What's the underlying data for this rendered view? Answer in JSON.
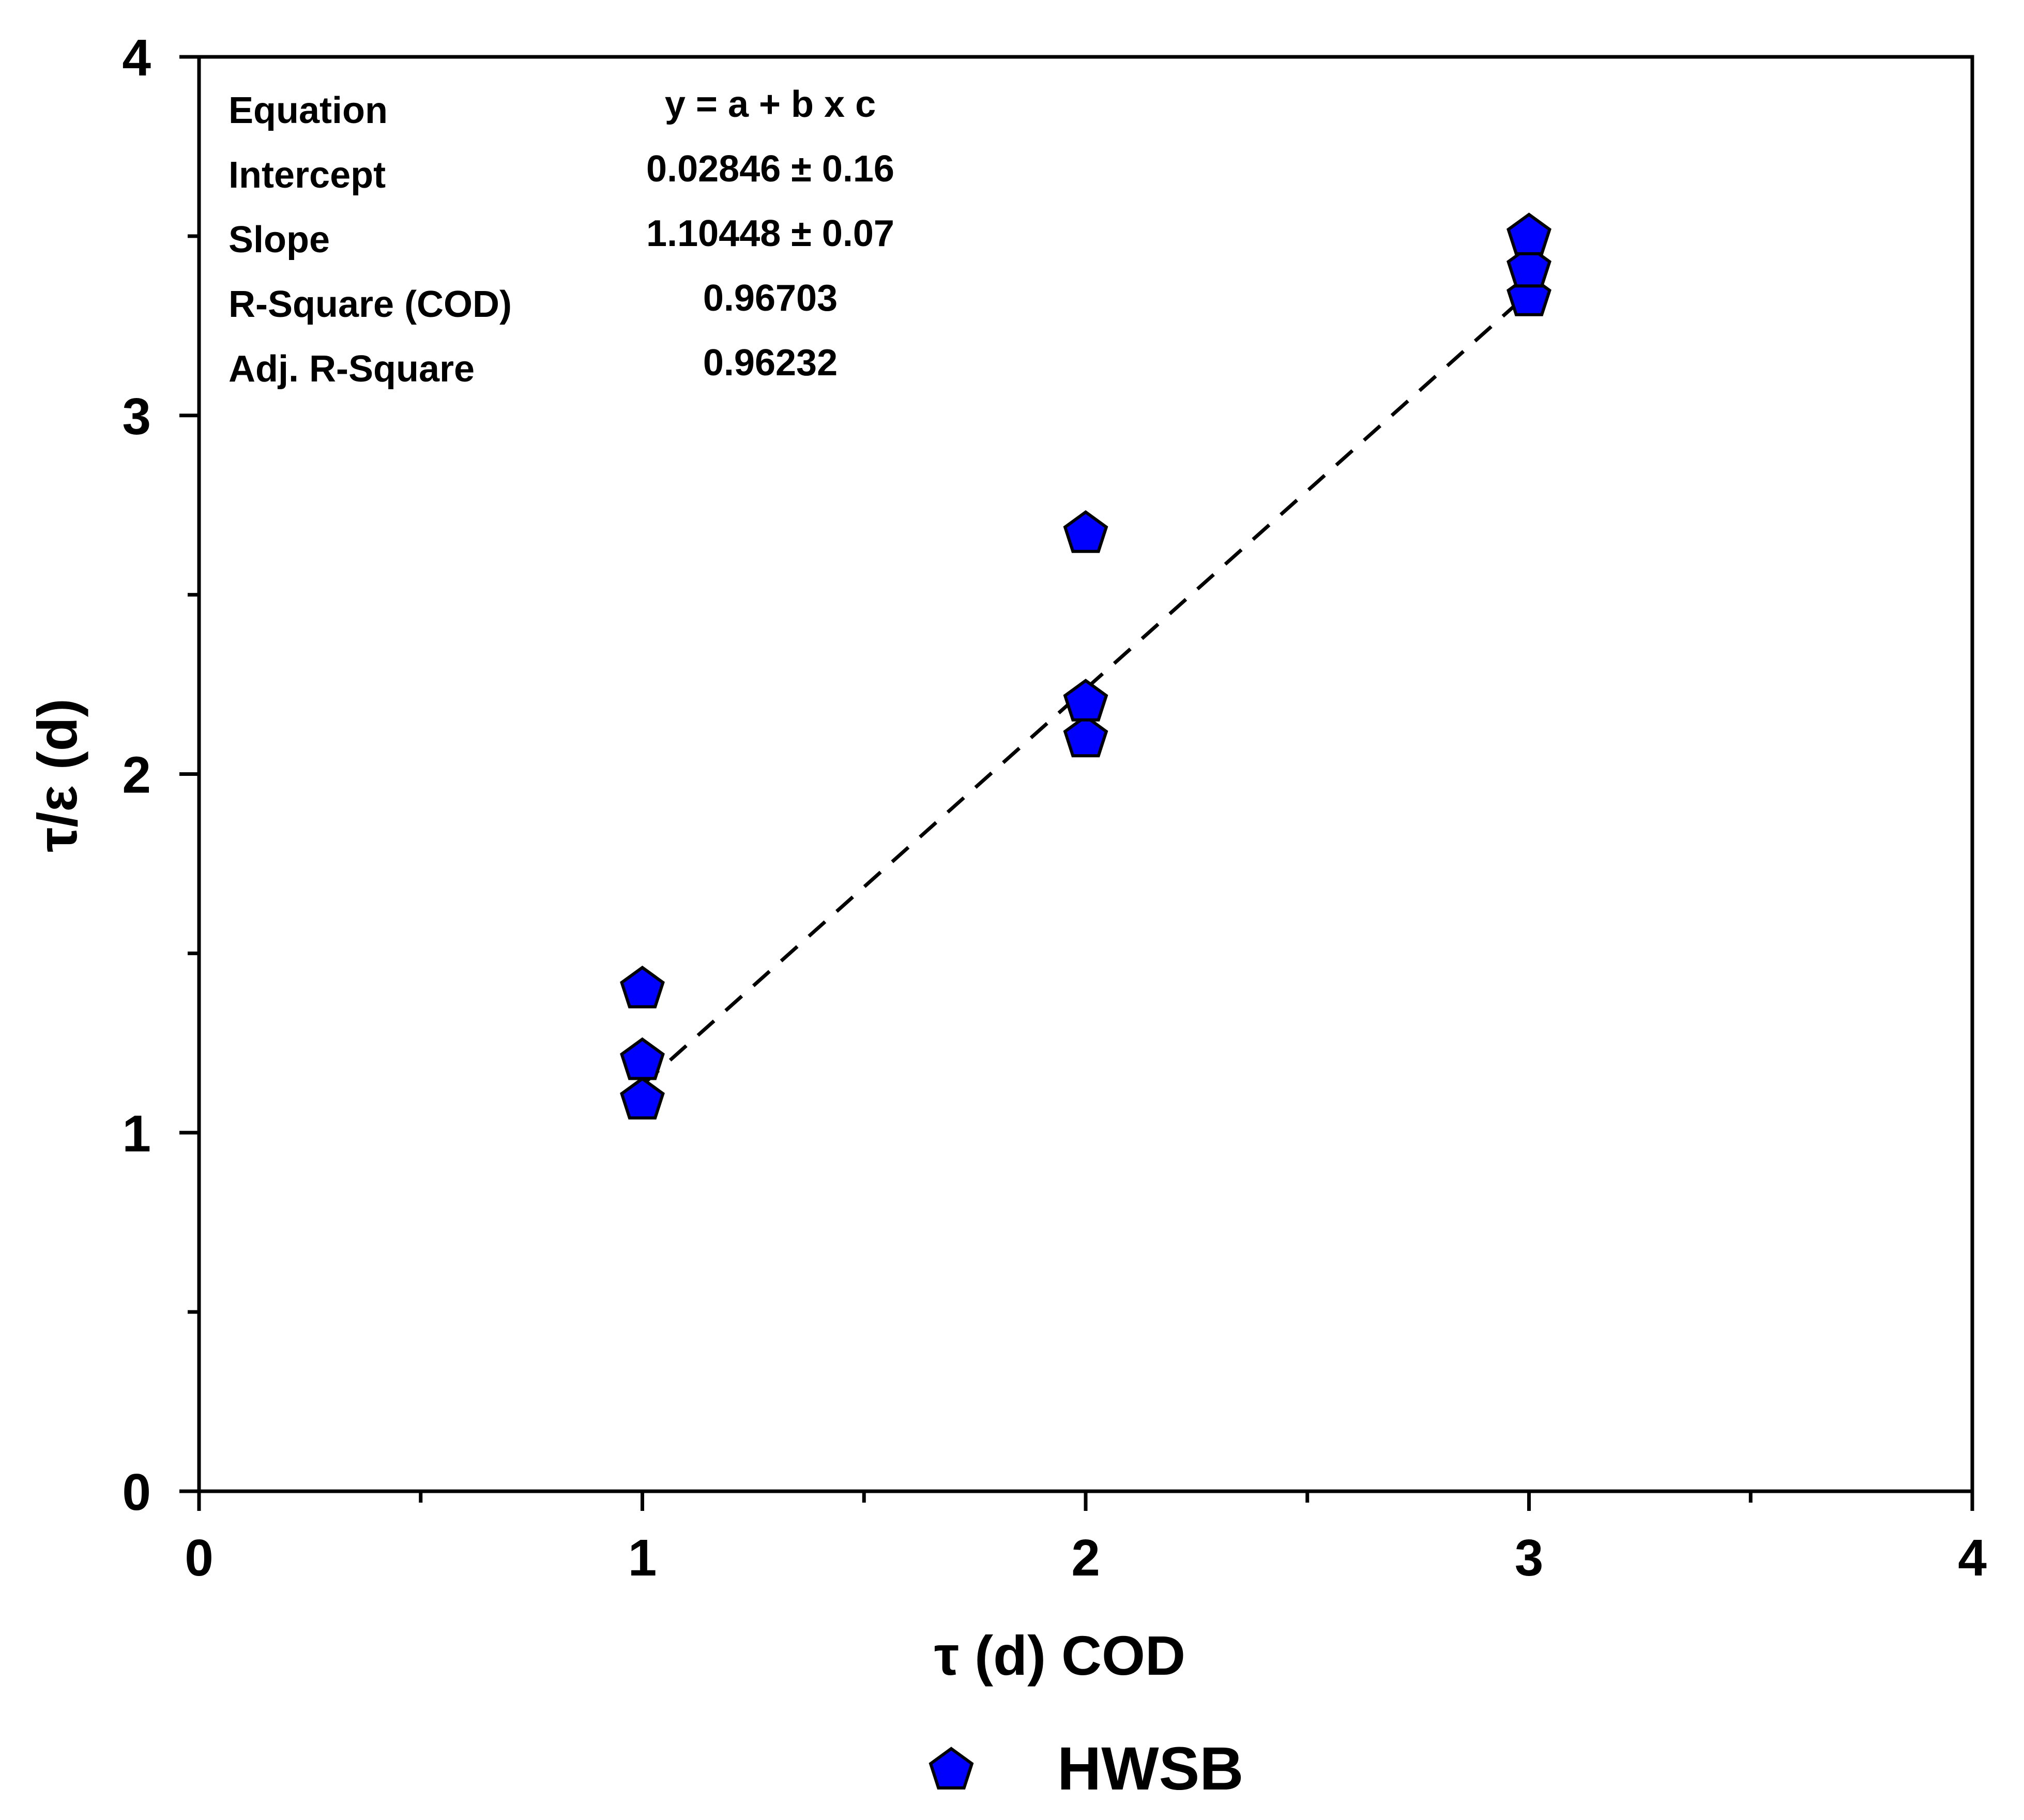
{
  "chart_data": {
    "type": "scatter",
    "title": "",
    "xlabel": "τ (d) COD",
    "ylabel": "τ/ε (d)",
    "xlim": [
      0,
      4
    ],
    "ylim": [
      0,
      4
    ],
    "x_ticks": [
      "0",
      "1",
      "2",
      "3",
      "4"
    ],
    "y_ticks": [
      "0",
      "1",
      "2",
      "3",
      "4"
    ],
    "grid": false,
    "legend_position": "bottom-center",
    "series": [
      {
        "name": "HWSB",
        "marker": "pentagon",
        "color": "#0000ff",
        "points": [
          {
            "x": 1,
            "y": 1.09
          },
          {
            "x": 1,
            "y": 1.2
          },
          {
            "x": 1,
            "y": 1.4
          },
          {
            "x": 2,
            "y": 2.1
          },
          {
            "x": 2,
            "y": 2.2
          },
          {
            "x": 2,
            "y": 2.67
          },
          {
            "x": 3,
            "y": 3.33
          },
          {
            "x": 3,
            "y": 3.41
          },
          {
            "x": 3,
            "y": 3.5
          }
        ]
      }
    ],
    "fit_line": {
      "style": "dashed",
      "color": "#000000",
      "x_start": 1,
      "x_end": 3,
      "intercept": 0.02846,
      "slope": 1.10448
    },
    "fit_stats": [
      {
        "label": "Equation",
        "value": "y = a + b x c"
      },
      {
        "label": "Intercept",
        "value": "0.02846 ± 0.16"
      },
      {
        "label": "Slope",
        "value": "1.10448 ± 0.07"
      },
      {
        "label": "R-Square (COD)",
        "value": "0.96703"
      },
      {
        "label": "Adj. R-Square",
        "value": "0.96232"
      }
    ]
  }
}
